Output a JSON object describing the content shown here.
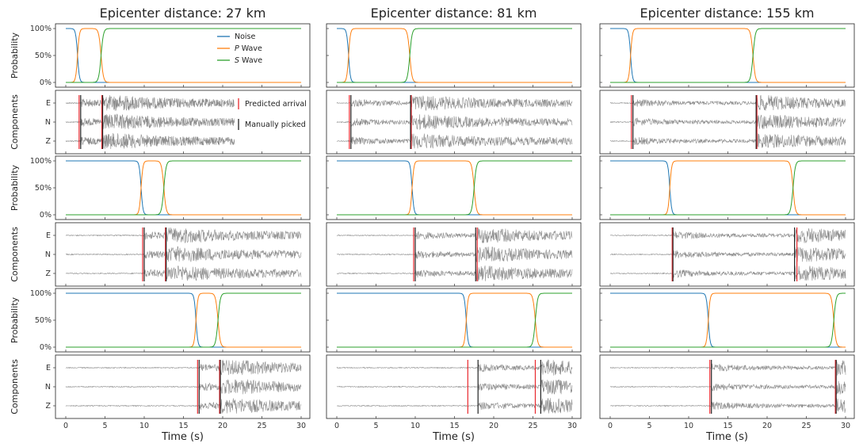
{
  "chart_data": {
    "type": "line",
    "column_titles": [
      "Epicenter distance: 27 km",
      "Epicenter distance: 81 km",
      "Epicenter distance: 155 km"
    ],
    "ylabel_probability": "Probability",
    "ylabel_components": "Components",
    "xlabel": "Time (s)",
    "xlim": [
      0,
      30
    ],
    "x_ticks": [
      "0",
      "5",
      "10",
      "15",
      "20",
      "25",
      "30"
    ],
    "prob_ticks": [
      "100%",
      "50%",
      "0%"
    ],
    "component_labels": [
      "E",
      "N",
      "Z"
    ],
    "prob_legend": [
      {
        "name": "Noise",
        "color": "#1f77b4"
      },
      {
        "name": "P",
        "suffix": " Wave",
        "color": "#ff7f0e"
      },
      {
        "name": "S",
        "suffix": " Wave",
        "color": "#2ca02c"
      }
    ],
    "pick_legend": [
      {
        "name": "Predicted arrival",
        "color": "#e8282e"
      },
      {
        "name": "Manually picked",
        "color": "#222222"
      }
    ],
    "colors": {
      "noise": "#1f77b4",
      "p": "#ff7f0e",
      "s": "#2ca02c",
      "trace": "#8c8c8c",
      "predicted": "#e8282e",
      "manual": "#222222"
    },
    "panels": [
      {
        "row": 0,
        "col": 0,
        "p_predicted": 1.7,
        "p_manual": 1.9,
        "s_predicted": 4.6,
        "s_manual": 4.7,
        "p_rise": 1.5,
        "s_rise": 4.5,
        "trace_end": 21.5
      },
      {
        "row": 0,
        "col": 1,
        "p_predicted": 1.6,
        "p_manual": 1.8,
        "s_predicted": 9.5,
        "s_manual": 9.4,
        "p_rise": 1.5,
        "s_rise": 9.3,
        "trace_end": 30
      },
      {
        "row": 0,
        "col": 2,
        "p_predicted": 2.7,
        "p_manual": 2.9,
        "s_predicted": 18.7,
        "s_manual": 18.6,
        "p_rise": 2.6,
        "s_rise": 18.2,
        "trace_end": 30
      },
      {
        "row": 1,
        "col": 0,
        "p_predicted": 9.8,
        "p_manual": 10.0,
        "s_predicted": 12.7,
        "s_manual": 12.8,
        "p_rise": 9.6,
        "s_rise": 12.5,
        "trace_end": 30
      },
      {
        "row": 1,
        "col": 1,
        "p_predicted": 9.8,
        "p_manual": 10.0,
        "s_predicted": 17.9,
        "s_manual": 17.7,
        "p_rise": 9.6,
        "s_rise": 17.5,
        "trace_end": 30
      },
      {
        "row": 1,
        "col": 2,
        "p_predicted": 7.9,
        "p_manual": 8.0,
        "s_predicted": 23.8,
        "s_manual": 23.5,
        "p_rise": 7.6,
        "s_rise": 23.3,
        "trace_end": 30
      },
      {
        "row": 2,
        "col": 0,
        "p_predicted": 16.8,
        "p_manual": 17.0,
        "s_predicted": 19.6,
        "s_manual": 19.7,
        "p_rise": 16.6,
        "s_rise": 19.4,
        "trace_end": 30
      },
      {
        "row": 2,
        "col": 1,
        "p_predicted": 16.7,
        "p_manual": 18.0,
        "s_predicted": 25.3,
        "s_manual": 26.0,
        "p_rise": 16.5,
        "s_rise": 25.3,
        "trace_end": 30
      },
      {
        "row": 2,
        "col": 2,
        "p_predicted": 12.7,
        "p_manual": 12.9,
        "s_predicted": 28.7,
        "s_manual": 28.8,
        "p_rise": 12.5,
        "s_rise": 28.5,
        "trace_end": 30
      }
    ]
  }
}
